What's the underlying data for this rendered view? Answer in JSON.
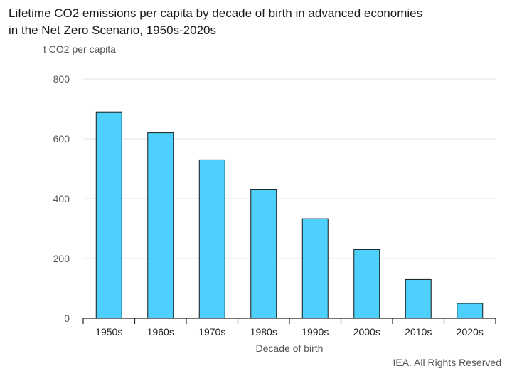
{
  "chart_data": {
    "type": "bar",
    "title": "Lifetime CO2 emissions per capita by decade of birth in advanced economies in the Net Zero Scenario, 1950s-2020s",
    "title_lines": [
      "Lifetime CO2 emissions per capita by decade of birth in advanced economies",
      "in the Net Zero Scenario, 1950s-2020s"
    ],
    "ylabel": "t CO2 per capita",
    "xlabel": "Decade of birth",
    "categories": [
      "1950s",
      "1960s",
      "1970s",
      "1980s",
      "1990s",
      "2000s",
      "2010s",
      "2020s"
    ],
    "values": [
      690,
      620,
      530,
      430,
      333,
      230,
      130,
      50
    ],
    "ylim": [
      0,
      800
    ],
    "yticks": [
      0,
      200,
      400,
      600,
      800
    ],
    "grid": true,
    "colors": {
      "bar_fill": "#4dd0fb",
      "bar_stroke": "#1a1a1a",
      "grid": "#e6e6e6",
      "axis": "#222222"
    }
  },
  "source": "IEA. All Rights Reserved"
}
